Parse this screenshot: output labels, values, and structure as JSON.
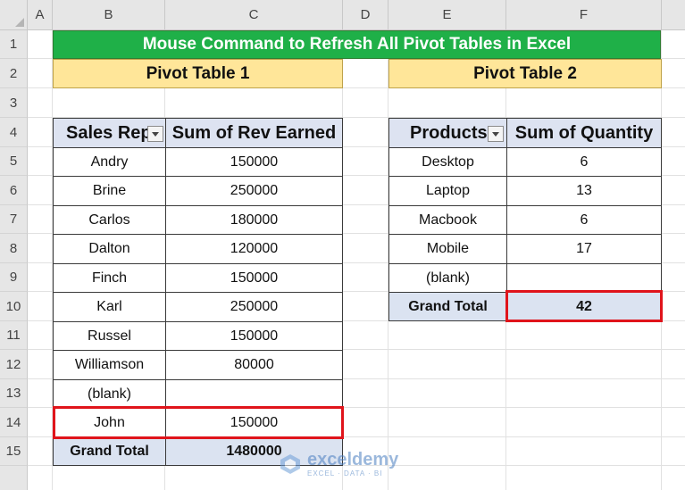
{
  "sheet": {
    "columns": [
      "A",
      "B",
      "C",
      "D",
      "E",
      "F"
    ],
    "rows": [
      "1",
      "2",
      "3",
      "4",
      "5",
      "6",
      "7",
      "8",
      "9",
      "10",
      "11",
      "12",
      "13",
      "14",
      "15"
    ],
    "title": "Mouse Command to Refresh All Pivot Tables in Excel",
    "pivot1_label": "Pivot Table 1",
    "pivot2_label": "Pivot Table 2"
  },
  "pivot1": {
    "header_rep": "Sales Rep",
    "header_value": "Sum of Rev Earned",
    "rows": [
      {
        "rep": "Andry",
        "value": "150000"
      },
      {
        "rep": "Brine",
        "value": "250000"
      },
      {
        "rep": "Carlos",
        "value": "180000"
      },
      {
        "rep": "Dalton",
        "value": "120000"
      },
      {
        "rep": "Finch",
        "value": "150000"
      },
      {
        "rep": "Karl",
        "value": "250000"
      },
      {
        "rep": "Russel",
        "value": "150000"
      },
      {
        "rep": "Williamson",
        "value": "80000"
      },
      {
        "rep": "(blank)",
        "value": ""
      },
      {
        "rep": "John",
        "value": "150000"
      }
    ],
    "total_label": "Grand Total",
    "total_value": "1480000"
  },
  "pivot2": {
    "header_product": "Products",
    "header_value": "Sum of Quantity",
    "rows": [
      {
        "product": "Desktop",
        "value": "6"
      },
      {
        "product": "Laptop",
        "value": "13"
      },
      {
        "product": "Macbook",
        "value": "6"
      },
      {
        "product": "Mobile",
        "value": "17"
      },
      {
        "product": "(blank)",
        "value": ""
      }
    ],
    "total_label": "Grand Total",
    "total_value": "42"
  },
  "watermark": {
    "name": "exceldemy",
    "tagline": "EXCEL · DATA · BI"
  },
  "colors": {
    "title_bg": "#1fb048",
    "label_bg": "#ffe699",
    "header_bg": "#dde3f1",
    "highlight": "#e0141b"
  }
}
